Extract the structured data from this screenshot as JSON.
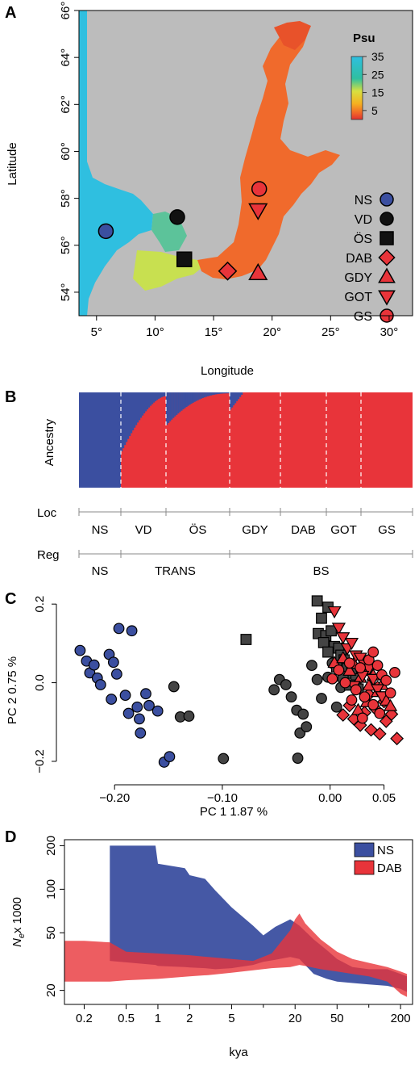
{
  "panel_labels": [
    "A",
    "B",
    "C",
    "D"
  ],
  "panelA": {
    "xlabel": "Longitude",
    "ylabel": "Latitude",
    "xticks": [
      "5°",
      "10°",
      "15°",
      "20°",
      "25°",
      "30°"
    ],
    "yticks": [
      "54°",
      "56°",
      "58°",
      "60°",
      "62°",
      "64°",
      "66°"
    ],
    "colorbar_title": "Psu",
    "colorbar_ticks": [
      "35",
      "25",
      "15",
      "5"
    ],
    "legend": [
      {
        "label": "NS",
        "shape": "circle",
        "color": "#3b4fa0"
      },
      {
        "label": "VD",
        "shape": "circle",
        "color": "#111111"
      },
      {
        "label": "ÖS",
        "shape": "square",
        "color": "#111111"
      },
      {
        "label": "DAB",
        "shape": "diamond",
        "color": "#e8343a"
      },
      {
        "label": "GDY",
        "shape": "triangle",
        "color": "#e8343a"
      },
      {
        "label": "GOT",
        "shape": "invtriangle",
        "color": "#e8343a"
      },
      {
        "label": "GS",
        "shape": "circle",
        "color": "#e8343a"
      }
    ],
    "sites": [
      {
        "label": "NS",
        "lon": 5.8,
        "lat": 56.6,
        "shape": "circle",
        "color": "#3b4fa0"
      },
      {
        "label": "VD",
        "lon": 11.9,
        "lat": 57.2,
        "shape": "circle",
        "color": "#111111"
      },
      {
        "label": "ÖS",
        "lon": 12.5,
        "lat": 55.4,
        "shape": "square",
        "color": "#111111"
      },
      {
        "label": "DAB",
        "lon": 16.2,
        "lat": 54.9,
        "shape": "diamond",
        "color": "#e8343a"
      },
      {
        "label": "GDY",
        "lon": 18.8,
        "lat": 54.8,
        "shape": "triangle",
        "color": "#e8343a"
      },
      {
        "label": "GOT",
        "lon": 18.8,
        "lat": 57.5,
        "shape": "invtriangle",
        "color": "#e8343a"
      },
      {
        "label": "GS",
        "lon": 18.9,
        "lat": 58.4,
        "shape": "circle",
        "color": "#e8343a"
      }
    ]
  },
  "panelB": {
    "ylabel": "Ancestry",
    "row_loc": "Loc",
    "row_reg": "Reg",
    "loc_labels": [
      "NS",
      "VD",
      "ÖS",
      "GDY",
      "DAB",
      "GOT",
      "GS"
    ],
    "reg_labels": [
      "NS",
      "TRANS",
      "BS"
    ],
    "colors": {
      "blue": "#3b4fa0",
      "red": "#e8343a"
    }
  },
  "panelC": {
    "xlabel": "PC 1 1.87 %",
    "ylabel": "PC 2 0.75 %",
    "xticks": [
      "−0.20",
      "−0.10",
      "0.00",
      "0.05"
    ],
    "yticks": [
      "−0.2",
      "0.0",
      "0.2"
    ]
  },
  "panelD": {
    "xlabel": "kya",
    "ylabel_main": "N",
    "ylabel_sub": "e",
    "ylabel_rest": "x 1000",
    "xticks": [
      "0.2",
      "0.5",
      "1",
      "2",
      "5",
      "20",
      "50",
      "200"
    ],
    "yticks": [
      "20",
      "50",
      "100",
      "200"
    ],
    "legend": [
      {
        "label": "NS",
        "color": "#3b4fa0"
      },
      {
        "label": "DAB",
        "color": "#e8343a"
      }
    ]
  },
  "chart_data": [
    {
      "type": "scatter",
      "title": "",
      "xlabel": "Longitude",
      "ylabel": "Latitude",
      "xlim": [
        3.5,
        32
      ],
      "ylim": [
        53,
        66
      ],
      "points": [
        {
          "name": "NS",
          "x": 5.8,
          "y": 56.6
        },
        {
          "name": "VD",
          "x": 11.9,
          "y": 57.2
        },
        {
          "name": "ÖS",
          "x": 12.5,
          "y": 55.4
        },
        {
          "name": "DAB",
          "x": 16.2,
          "y": 54.9
        },
        {
          "name": "GDY",
          "x": 18.8,
          "y": 54.8
        },
        {
          "name": "GOT",
          "x": 18.8,
          "y": 57.5
        },
        {
          "name": "GS",
          "x": 18.9,
          "y": 58.4
        }
      ],
      "colorbar": {
        "label": "Psu",
        "range": [
          0,
          35
        ],
        "ticks": [
          35,
          25,
          15,
          5
        ]
      }
    },
    {
      "type": "bar",
      "title": "",
      "ylabel": "Ancestry",
      "categories": [
        "NS",
        "VD",
        "ÖS",
        "GDY",
        "DAB",
        "GOT",
        "GS"
      ],
      "series": [
        {
          "name": "",
          "color": "#3b4fa0",
          "values": [
            1.0,
            0.2,
            0.1,
            0.02,
            0.0,
            0.0,
            0.0
          ]
        },
        {
          "name": "",
          "color": "#e8343a",
          "values": [
            0.0,
            0.8,
            0.9,
            0.98,
            1.0,
            1.0,
            1.0
          ]
        }
      ],
      "regions": [
        "NS",
        "TRANS",
        "BS"
      ]
    },
    {
      "type": "scatter",
      "title": "",
      "xlabel": "PC 1 1.87 %",
      "ylabel": "PC 2 0.75 %",
      "xlim": [
        -0.245,
        0.075
      ],
      "ylim": [
        -0.235,
        0.225
      ],
      "series": [
        {
          "name": "NS",
          "color": "#3b4fa0",
          "shape": "circle",
          "points": [
            [
              -0.232,
              0.082
            ],
            [
              -0.226,
              0.055
            ],
            [
              -0.223,
              0.025
            ],
            [
              -0.219,
              0.045
            ],
            [
              -0.216,
              0.012
            ],
            [
              -0.213,
              -0.005
            ],
            [
              -0.205,
              0.072
            ],
            [
              -0.201,
              0.052
            ],
            [
              -0.198,
              0.022
            ],
            [
              -0.203,
              -0.042
            ],
            [
              -0.196,
              0.138
            ],
            [
              -0.19,
              -0.032
            ],
            [
              -0.187,
              -0.078
            ],
            [
              -0.184,
              0.132
            ],
            [
              -0.179,
              -0.062
            ],
            [
              -0.177,
              -0.092
            ],
            [
              -0.176,
              -0.128
            ],
            [
              -0.171,
              -0.028
            ],
            [
              -0.168,
              -0.058
            ],
            [
              -0.16,
              -0.072
            ],
            [
              -0.154,
              -0.202
            ],
            [
              -0.149,
              -0.188
            ]
          ]
        },
        {
          "name": "VD",
          "color": "#444444",
          "shape": "circle",
          "points": [
            [
              -0.145,
              -0.01
            ],
            [
              -0.139,
              -0.087
            ],
            [
              -0.131,
              -0.085
            ],
            [
              -0.099,
              -0.193
            ],
            [
              -0.052,
              -0.018
            ],
            [
              -0.047,
              0.008
            ],
            [
              -0.041,
              -0.005
            ],
            [
              -0.036,
              -0.036
            ],
            [
              -0.031,
              -0.07
            ],
            [
              -0.028,
              -0.128
            ],
            [
              -0.025,
              -0.08
            ],
            [
              -0.022,
              -0.112
            ],
            [
              -0.03,
              -0.192
            ],
            [
              -0.017,
              0.044
            ],
            [
              -0.012,
              0.008
            ],
            [
              -0.008,
              -0.04
            ],
            [
              -0.002,
              0.014
            ],
            [
              0.002,
              0.05
            ],
            [
              0.006,
              -0.062
            ],
            [
              0.01,
              -0.012
            ]
          ]
        },
        {
          "name": "ÖS",
          "color": "#444444",
          "shape": "square",
          "points": [
            [
              -0.078,
              0.11
            ],
            [
              -0.012,
              0.208
            ],
            [
              -0.002,
              0.192
            ],
            [
              -0.008,
              0.164
            ],
            [
              -0.011,
              0.125
            ],
            [
              -0.004,
              0.12
            ],
            [
              0.001,
              0.132
            ],
            [
              -0.006,
              0.102
            ],
            [
              0.004,
              0.092
            ],
            [
              0.008,
              0.088
            ],
            [
              0.01,
              0.07
            ],
            [
              -0.002,
              0.078
            ],
            [
              0.013,
              0.058
            ],
            [
              0.006,
              0.04
            ],
            [
              0.016,
              0.036
            ],
            [
              0.02,
              0.024
            ],
            [
              0.012,
              0.016
            ],
            [
              0.024,
              0.01
            ],
            [
              0.018,
              -0.006
            ],
            [
              0.026,
              -0.016
            ]
          ]
        },
        {
          "name": "DAB",
          "color": "#e8343a",
          "shape": "diamond",
          "points": [
            [
              0.012,
              -0.082
            ],
            [
              0.018,
              -0.058
            ],
            [
              0.022,
              -0.092
            ],
            [
              0.028,
              -0.108
            ],
            [
              0.032,
              -0.076
            ],
            [
              0.038,
              -0.12
            ],
            [
              0.042,
              -0.066
            ],
            [
              0.046,
              -0.13
            ],
            [
              0.052,
              -0.098
            ],
            [
              0.057,
              -0.08
            ],
            [
              0.062,
              -0.142
            ],
            [
              0.036,
              -0.03
            ],
            [
              0.044,
              -0.012
            ],
            [
              0.05,
              -0.048
            ]
          ]
        },
        {
          "name": "GDY",
          "color": "#e8343a",
          "shape": "triangle",
          "points": [
            [
              0.004,
              0.05
            ],
            [
              0.012,
              0.062
            ],
            [
              0.018,
              0.03
            ],
            [
              0.022,
              0.048
            ],
            [
              0.028,
              0.012
            ],
            [
              0.032,
              0.03
            ],
            [
              0.036,
              -0.008
            ],
            [
              0.04,
              0.018
            ],
            [
              0.044,
              -0.024
            ],
            [
              0.048,
              -0.006
            ],
            [
              0.052,
              -0.046
            ],
            [
              0.056,
              -0.06
            ],
            [
              0.034,
              -0.05
            ],
            [
              0.026,
              -0.07
            ]
          ]
        },
        {
          "name": "GOT",
          "color": "#e8343a",
          "shape": "invtriangle",
          "points": [
            [
              0.004,
              0.182
            ],
            [
              0.008,
              0.14
            ],
            [
              0.012,
              0.116
            ],
            [
              0.016,
              0.088
            ],
            [
              0.02,
              0.102
            ],
            [
              0.024,
              0.07
            ],
            [
              0.028,
              0.064
            ],
            [
              0.032,
              0.046
            ],
            [
              0.036,
              0.036
            ],
            [
              0.04,
              0.01
            ],
            [
              0.044,
              -0.016
            ],
            [
              0.048,
              -0.034
            ],
            [
              0.03,
              0.018
            ],
            [
              0.022,
              -0.008
            ]
          ]
        },
        {
          "name": "GS",
          "color": "#e8343a",
          "shape": "circle",
          "points": [
            [
              0.002,
              0.01
            ],
            [
              0.008,
              0.032
            ],
            [
              0.014,
              0.0
            ],
            [
              0.018,
              0.05
            ],
            [
              0.024,
              -0.018
            ],
            [
              0.028,
              0.038
            ],
            [
              0.032,
              -0.036
            ],
            [
              0.036,
              0.058
            ],
            [
              0.04,
              -0.056
            ],
            [
              0.044,
              0.044
            ],
            [
              0.048,
              0.02
            ],
            [
              0.052,
              0.006
            ],
            [
              0.056,
              -0.026
            ],
            [
              0.06,
              0.026
            ],
            [
              0.046,
              -0.078
            ],
            [
              0.04,
              0.078
            ],
            [
              0.03,
              -0.09
            ],
            [
              0.02,
              -0.044
            ]
          ]
        }
      ]
    },
    {
      "type": "area",
      "title": "",
      "xlabel": "kya",
      "ylabel": "Ne x 1000",
      "xscale": "log",
      "yscale": "log",
      "xlim": [
        0.13,
        260
      ],
      "ylim": [
        16,
        220
      ],
      "series": [
        {
          "name": "NS",
          "color": "#3b4fa0",
          "x": [
            0.35,
            0.95,
            1.0,
            1.8,
            2.0,
            2.8,
            3.5,
            5.0,
            8.0,
            10.0,
            13.0,
            18.0,
            22.0,
            30.0,
            40.0,
            50.0,
            70.0,
            100.0,
            150.0,
            200.0,
            230.0
          ],
          "lower": [
            32.0,
            30.0,
            29.5,
            29.0,
            28.8,
            28.5,
            28.0,
            28.5,
            30.0,
            31.5,
            32.5,
            34.0,
            33.0,
            26.0,
            24.0,
            23.0,
            22.5,
            22.0,
            21.5,
            20.5,
            19.5
          ],
          "upper": [
            200.0,
            200.0,
            150.0,
            140.0,
            125.0,
            118.0,
            98.0,
            75.0,
            56.0,
            48.0,
            55.0,
            62.0,
            56.0,
            45.0,
            38.0,
            33.0,
            29.0,
            28.0,
            28.0,
            26.0,
            25.0
          ]
        },
        {
          "name": "DAB",
          "color": "#e8343a",
          "x": [
            0.13,
            0.2,
            0.35,
            0.5,
            1.0,
            2.0,
            3.0,
            5.0,
            8.0,
            12.0,
            18.0,
            20.0,
            22.0,
            25.0,
            35.0,
            50.0,
            70.0,
            100.0,
            150.0,
            200.0,
            230.0
          ],
          "lower": [
            23.0,
            23.0,
            23.0,
            23.5,
            24.0,
            25.0,
            25.5,
            26.5,
            27.5,
            28.5,
            29.0,
            29.5,
            30.0,
            29.5,
            28.0,
            27.0,
            26.0,
            25.0,
            23.0,
            19.0,
            18.0
          ],
          "upper": [
            44.0,
            44.0,
            43.0,
            37.0,
            36.0,
            35.0,
            34.0,
            33.0,
            32.0,
            36.0,
            52.0,
            62.0,
            68.0,
            58.0,
            45.0,
            37.0,
            33.0,
            31.0,
            29.0,
            27.0,
            26.0
          ]
        }
      ]
    }
  ]
}
